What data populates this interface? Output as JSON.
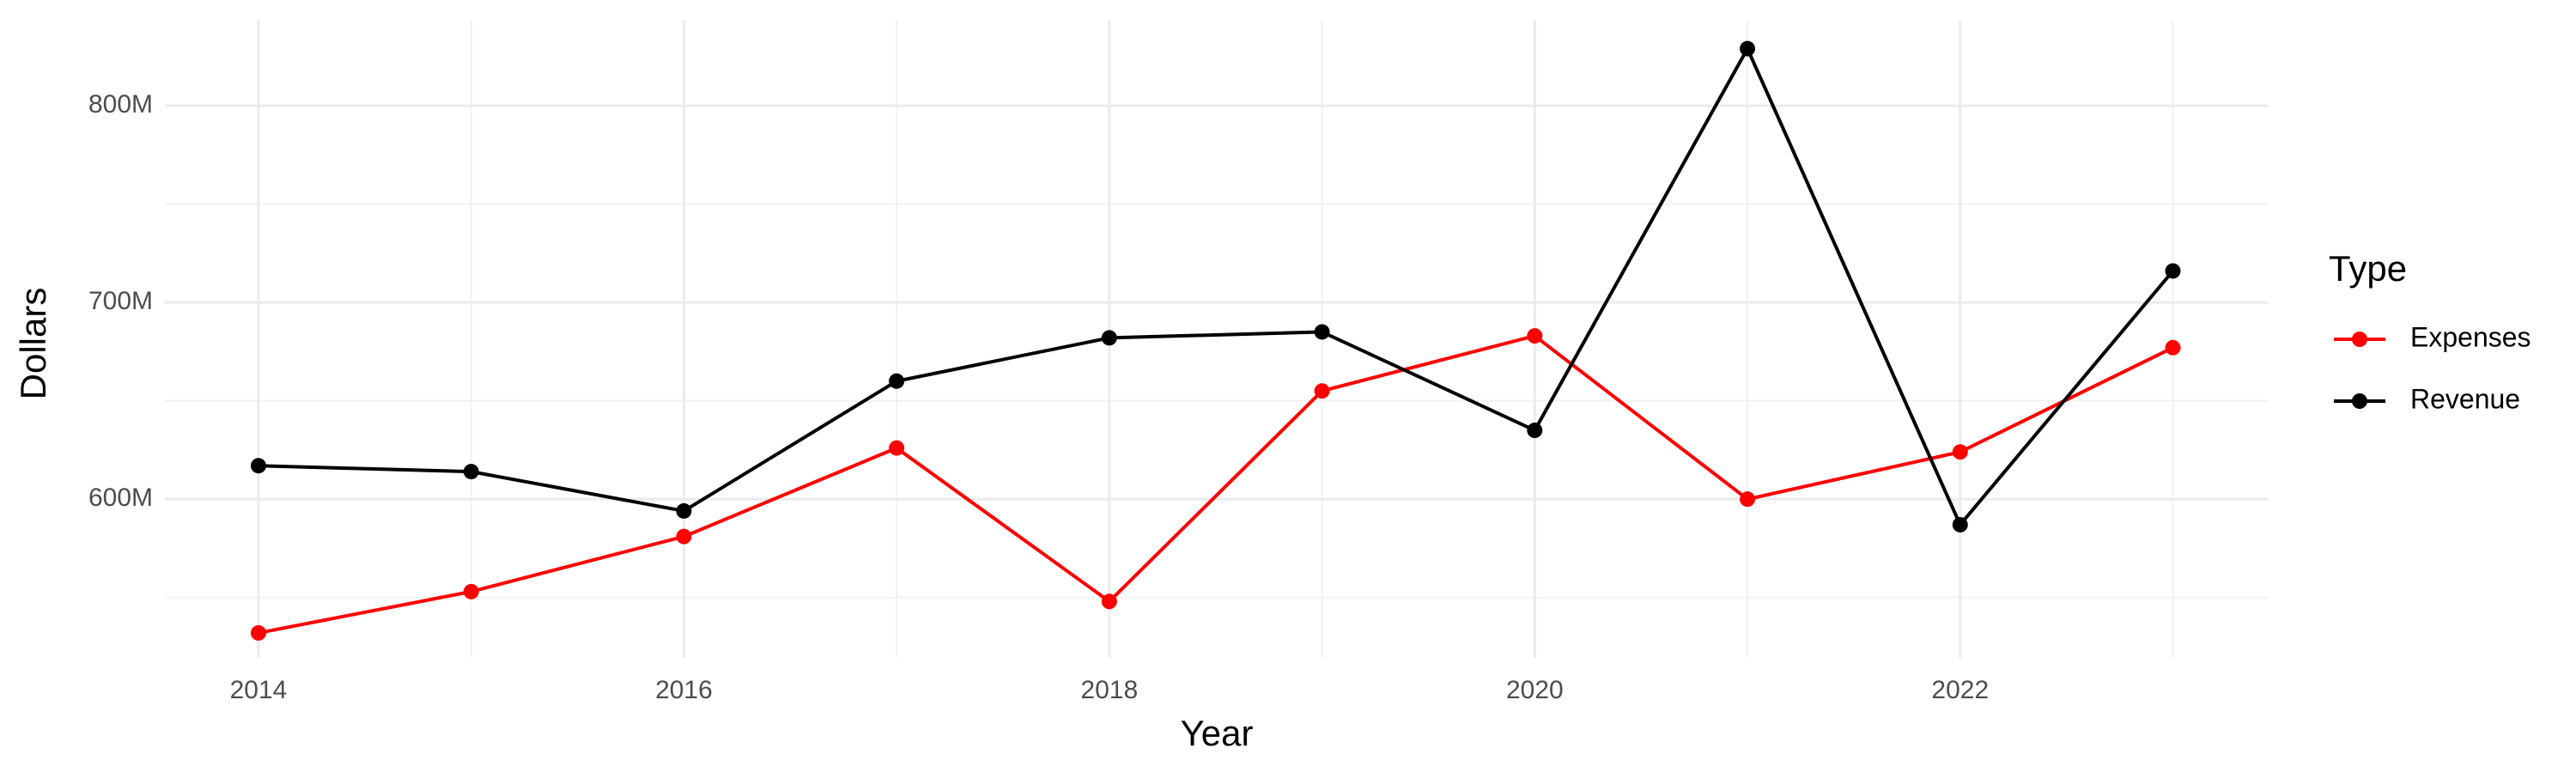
{
  "chart_data": {
    "type": "line",
    "x_label": "Year",
    "y_label": "Dollars",
    "legend_title": "Type",
    "legend": "right",
    "grid": true,
    "x": [
      2014,
      2015,
      2016,
      2017,
      2018,
      2019,
      2020,
      2021,
      2022,
      2023
    ],
    "series": [
      {
        "name": "Expenses",
        "color": "#ff0000",
        "values": [
          532000000,
          553000000,
          581000000,
          626000000,
          548000000,
          655000000,
          683000000,
          600000000,
          624000000,
          677000000
        ]
      },
      {
        "name": "Revenue",
        "color": "#000000",
        "values": [
          617000000,
          614000000,
          594000000,
          660000000,
          682000000,
          685000000,
          635000000,
          829000000,
          587000000,
          716000000
        ]
      }
    ],
    "xlim": [
      2013.56,
      2023.45
    ],
    "xticks": [
      2014,
      2016,
      2018,
      2020,
      2022
    ],
    "ylim": [
      519300000,
      843700000
    ],
    "yticks": [
      {
        "value": 600000000,
        "label": "600M"
      },
      {
        "value": 700000000,
        "label": "700M"
      },
      {
        "value": 800000000,
        "label": "800M"
      }
    ]
  }
}
